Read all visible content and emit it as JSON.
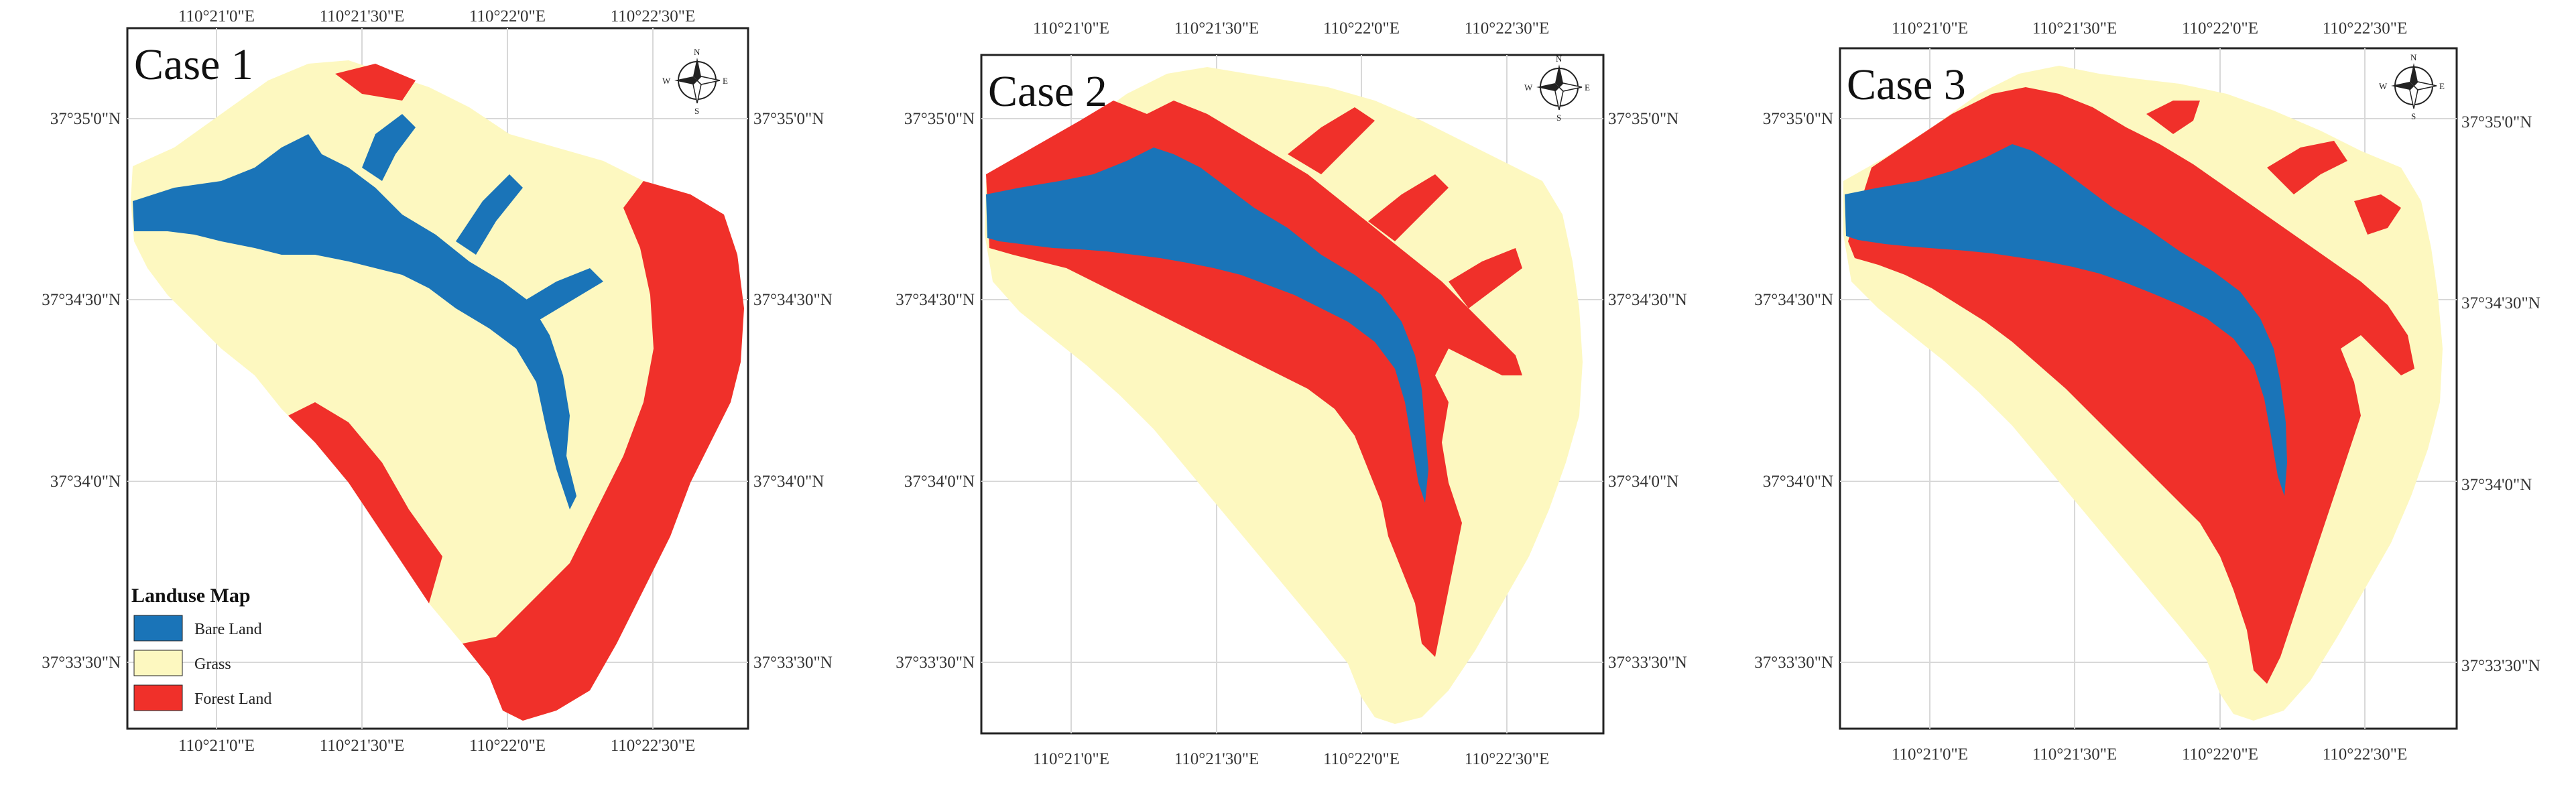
{
  "colors": {
    "bare_land": "#1a74b8",
    "grass": "#fdf8c0",
    "forest_land": "#f0302a",
    "graticule": "#d8d8d8",
    "frame": "#222222"
  },
  "panels": [
    {
      "title": "Case 1",
      "lon_labels": [
        "110°21'0\"E",
        "110°21'30\"E",
        "110°22'0\"E",
        "110°22'30\"E"
      ],
      "lat_labels_left": [
        "37°35'0\"N",
        "37°34'30\"N",
        "37°34'0\"N",
        "37°33'30\"N"
      ],
      "lat_labels_right": [
        "37°35'0\"N",
        "37°34'30\"N",
        "37°34'0\"N",
        "37°33'30\"N"
      ],
      "compass": {
        "n": "N",
        "s": "S",
        "e": "E",
        "w": "W"
      }
    },
    {
      "title": "Case 2",
      "lon_labels": [
        "110°21'0\"E",
        "110°21'30\"E",
        "110°22'0\"E",
        "110°22'30\"E"
      ],
      "lat_labels_left": [
        "37°35'0\"N",
        "37°34'30\"N",
        "37°34'0\"N",
        "37°33'30\"N"
      ],
      "lat_labels_right": [
        "37°35'0\"N",
        "37°34'30\"N",
        "37°34'0\"N",
        "37°33'30\"N"
      ],
      "compass": {
        "n": "N",
        "s": "S",
        "e": "E",
        "w": "W"
      }
    },
    {
      "title": "Case 3",
      "lon_labels": [
        "110°21'0\"E",
        "110°21'30\"E",
        "110°22'0\"E",
        "110°22'30\"E"
      ],
      "lat_labels_left": [
        "37°35'0\"N",
        "37°34'30\"N",
        "37°34'0\"N",
        "37°33'30\"N"
      ],
      "lat_labels_right": [
        "37°35'0\"N",
        "37°34'30\"N",
        "37°34'0\"N",
        "37°33'30\"N"
      ],
      "compass": {
        "n": "N",
        "s": "S",
        "e": "E",
        "w": "W"
      }
    }
  ],
  "legend": {
    "title": "Landuse Map",
    "items": [
      {
        "label": "Bare Land",
        "color": "#1a74b8"
      },
      {
        "label": "Grass",
        "color": "#fdf8c0"
      },
      {
        "label": "Forest Land",
        "color": "#f0302a"
      }
    ]
  }
}
